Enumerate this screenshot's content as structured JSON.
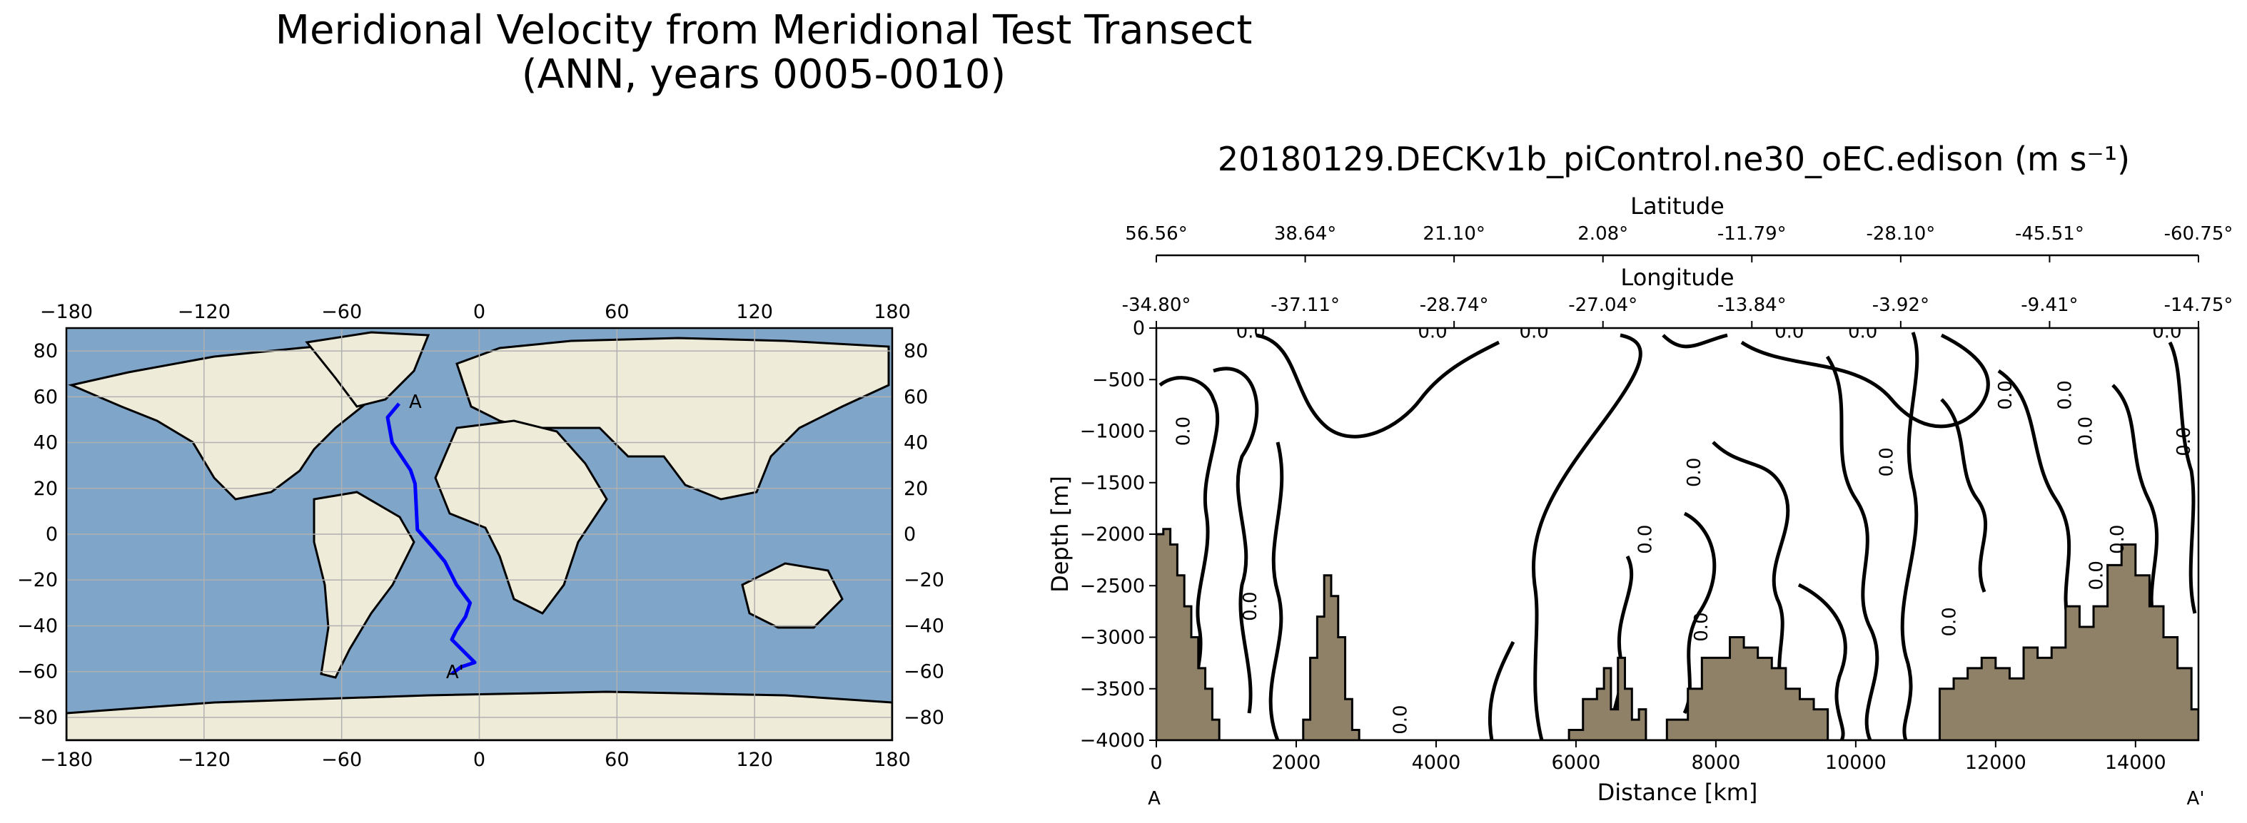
{
  "figure": {
    "title_line1": "Meridional Velocity from Meridional Test Transect",
    "title_line2": "(ANN, years 0005-0010)",
    "subtitle": "20180129.DECKv1b_piControl.ne30_oEC.edison (m s⁻¹)"
  },
  "colors": {
    "ocean": "#7fa6c9",
    "land": "#efebd9",
    "transect": "#0000ff",
    "bathymetry": "#8f8068",
    "contour": "#000000"
  },
  "chart_data": [
    {
      "type": "map",
      "name": "Transect location map",
      "x_ticks": [
        "−180",
        "−120",
        "−60",
        "0",
        "60",
        "120",
        "180"
      ],
      "x_tick_values": [
        -180,
        -120,
        -60,
        0,
        60,
        120,
        180
      ],
      "y_ticks": [
        "80",
        "60",
        "40",
        "20",
        "0",
        "−20",
        "−40",
        "−60",
        "−80"
      ],
      "y_tick_values": [
        80,
        60,
        40,
        20,
        0,
        -20,
        -40,
        -60,
        -80
      ],
      "xlim": [
        -180,
        180
      ],
      "ylim": [
        -90,
        90
      ],
      "grid": true,
      "transect": {
        "start_label": "A",
        "end_label": "A'",
        "lon": [
          -35,
          -40,
          -38,
          -30,
          -28,
          -27,
          -20,
          -15,
          -10,
          -4,
          -6,
          -10,
          -12,
          -6,
          -2,
          -8,
          -12
        ],
        "lat": [
          57,
          51,
          40,
          28,
          22,
          2,
          -6,
          -12,
          -22,
          -30,
          -36,
          -42,
          -46,
          -52,
          -56,
          -58,
          -61
        ]
      },
      "end_labels": {
        "a": "A",
        "a_prime": "A'"
      }
    },
    {
      "type": "contour",
      "name": "Velocity section",
      "ylabel": "Depth [m]",
      "xlabel": "Distance [km]",
      "xlim": [
        0,
        14900
      ],
      "ylim": [
        -4000,
        0
      ],
      "x_ticks": [
        "0",
        "2000",
        "4000",
        "6000",
        "8000",
        "10000",
        "12000",
        "14000"
      ],
      "x_tick_values": [
        0,
        2000,
        4000,
        6000,
        8000,
        10000,
        12000,
        14000
      ],
      "y_ticks": [
        "0",
        "−500",
        "−1000",
        "−1500",
        "−2000",
        "−2500",
        "−3000",
        "−3500",
        "−4000"
      ],
      "y_tick_values": [
        0,
        -500,
        -1000,
        -1500,
        -2000,
        -2500,
        -3000,
        -3500,
        -4000
      ],
      "start_label": "A",
      "end_label": "A'",
      "top_axis_latitude": {
        "label": "Latitude",
        "ticks": [
          "56.56°",
          "38.64°",
          "21.10°",
          "2.08°",
          "-11.79°",
          "-28.10°",
          "-45.51°",
          "-60.75°"
        ]
      },
      "top_axis_longitude": {
        "label": "Longitude",
        "ticks": [
          "-34.80°",
          "-37.11°",
          "-28.74°",
          "-27.04°",
          "-13.84°",
          "-3.92°",
          "-9.41°",
          "-14.75°"
        ]
      },
      "contour_level": "0.0",
      "contour_labels": [
        {
          "text": "0.0",
          "x": 1350,
          "y": -40
        },
        {
          "text": "0.0",
          "x": 3950,
          "y": -40
        },
        {
          "text": "0.0",
          "x": 5400,
          "y": -40
        },
        {
          "text": "0.0",
          "x": 9050,
          "y": -40
        },
        {
          "text": "0.0",
          "x": 10100,
          "y": -40
        },
        {
          "text": "0.0",
          "x": 14450,
          "y": -40
        },
        {
          "text": "0.0",
          "x": 400,
          "y": -1000
        },
        {
          "text": "0.0",
          "x": 7700,
          "y": -1400
        },
        {
          "text": "0.0",
          "x": 10450,
          "y": -1300
        },
        {
          "text": "0.0",
          "x": 7000,
          "y": -2050
        },
        {
          "text": "0.0",
          "x": 1350,
          "y": -2700
        },
        {
          "text": "0.0",
          "x": 7800,
          "y": -2900
        },
        {
          "text": "0.0",
          "x": 3500,
          "y": -3800
        },
        {
          "text": "0.0",
          "x": 11350,
          "y": -2850
        },
        {
          "text": "0.0",
          "x": 13450,
          "y": -2400
        },
        {
          "text": "0.0",
          "x": 13750,
          "y": -2050
        },
        {
          "text": "0.0",
          "x": 12150,
          "y": -650
        },
        {
          "text": "0.0",
          "x": 13000,
          "y": -650
        },
        {
          "text": "0.0",
          "x": 13300,
          "y": -1000
        },
        {
          "text": "0.0",
          "x": 14700,
          "y": -1100
        }
      ],
      "bathymetry": {
        "x": [
          0,
          100,
          200,
          300,
          400,
          500,
          600,
          700,
          800,
          900,
          1000,
          1800,
          2100,
          2200,
          2300,
          2400,
          2500,
          2600,
          2700,
          2800,
          2900,
          3000,
          5200,
          5900,
          6100,
          6300,
          6400,
          6500,
          6600,
          6700,
          6800,
          6900,
          7000,
          7100,
          7300,
          7600,
          7800,
          8000,
          8200,
          8400,
          8600,
          8800,
          9000,
          9200,
          9400,
          9600,
          10000,
          11000,
          11200,
          11400,
          11600,
          11800,
          12000,
          12200,
          12400,
          12600,
          12800,
          13000,
          13200,
          13400,
          13600,
          13800,
          14000,
          14200,
          14400,
          14600,
          14800,
          14900
        ],
        "depth": [
          -2000,
          -1950,
          -2100,
          -2400,
          -2700,
          -3000,
          -3300,
          -3500,
          -3800,
          -4000,
          -4000,
          -4000,
          -3800,
          -3200,
          -2800,
          -2400,
          -2600,
          -3000,
          -3600,
          -3900,
          -4000,
          -4000,
          -4000,
          -3900,
          -3600,
          -3500,
          -3300,
          -3700,
          -3200,
          -3500,
          -3800,
          -3700,
          -4000,
          -4000,
          -3800,
          -3500,
          -3200,
          -3200,
          -3000,
          -3100,
          -3200,
          -3300,
          -3500,
          -3600,
          -3700,
          -4000,
          -4000,
          -4000,
          -3500,
          -3400,
          -3300,
          -3200,
          -3300,
          -3400,
          -3100,
          -3200,
          -3100,
          -2700,
          -2900,
          -2700,
          -2300,
          -2100,
          -2400,
          -2700,
          -3000,
          -3300,
          -3700,
          -4000
        ]
      }
    }
  ]
}
